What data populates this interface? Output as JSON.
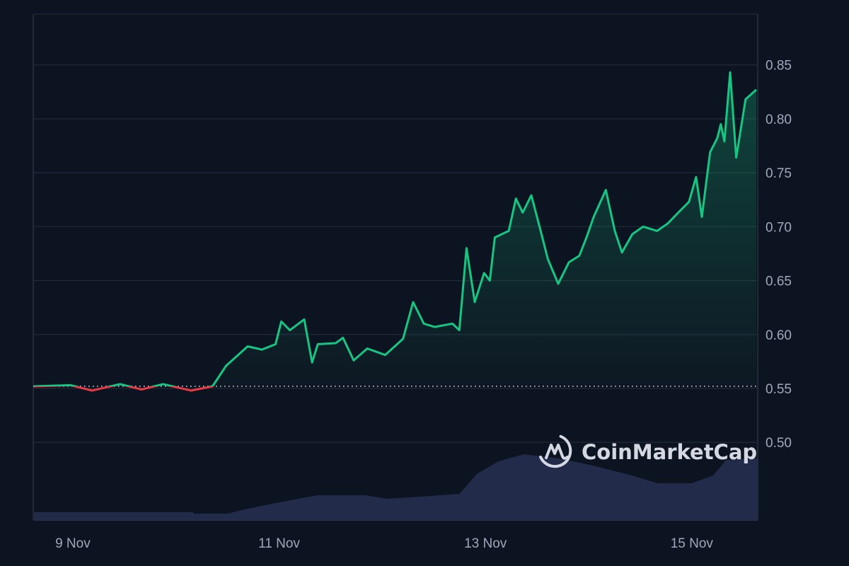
{
  "chart_data": {
    "type": "line",
    "title": "",
    "xlabel": "",
    "ylabel": "",
    "ylim": [
      0.428,
      0.897
    ],
    "y_ticks": [
      "0.50",
      "0.55",
      "0.60",
      "0.65",
      "0.70",
      "0.75",
      "0.80",
      "0.85"
    ],
    "x_ticks": [
      "9 Nov",
      "11 Nov",
      "13 Nov",
      "15 Nov"
    ],
    "x_range": [
      "8 Nov 14:48",
      "15 Nov 15:20"
    ],
    "grid": true,
    "baseline": 0.552,
    "colors": {
      "background": "#0d1421",
      "up": "#16c784",
      "down": "#ea3943",
      "volume": "#222b4a",
      "grid": "#222a3a"
    },
    "watermark": "CoinMarketCap",
    "series": [
      {
        "kind": "price",
        "points": [
          [
            "8 Nov 15:00",
            0.552
          ],
          [
            "8 Nov 23:30",
            0.553
          ],
          [
            "9 Nov 04:30",
            0.548
          ],
          [
            "9 Nov 11:00",
            0.554
          ],
          [
            "9 Nov 16:00",
            0.549
          ],
          [
            "9 Nov 21:00",
            0.554
          ],
          [
            "10 Nov 03:30",
            0.548
          ],
          [
            "10 Nov 08:30",
            0.552
          ],
          [
            "10 Nov 11:40",
            0.571
          ],
          [
            "10 Nov 16:40",
            0.589
          ],
          [
            "10 Nov 20:00",
            0.586
          ],
          [
            "10 Nov 23:10",
            0.591
          ],
          [
            "11 Nov 00:30",
            0.612
          ],
          [
            "11 Nov 02:30",
            0.604
          ],
          [
            "11 Nov 05:50",
            0.614
          ],
          [
            "11 Nov 07:40",
            0.574
          ],
          [
            "11 Nov 09:00",
            0.591
          ],
          [
            "11 Nov 13:10",
            0.592
          ],
          [
            "11 Nov 14:50",
            0.597
          ],
          [
            "11 Nov 17:20",
            0.576
          ],
          [
            "11 Nov 20:30",
            0.587
          ],
          [
            "12 Nov 00:40",
            0.581
          ],
          [
            "12 Nov 04:50",
            0.596
          ],
          [
            "12 Nov 07:10",
            0.63
          ],
          [
            "12 Nov 09:40",
            0.61
          ],
          [
            "12 Nov 12:10",
            0.607
          ],
          [
            "12 Nov 16:20",
            0.61
          ],
          [
            "12 Nov 17:55",
            0.604
          ],
          [
            "12 Nov 19:35",
            0.68
          ],
          [
            "12 Nov 21:30",
            0.63
          ],
          [
            "12 Nov 23:40",
            0.657
          ],
          [
            "13 Nov 01:00",
            0.65
          ],
          [
            "13 Nov 02:10",
            0.69
          ],
          [
            "13 Nov 05:25",
            0.696
          ],
          [
            "13 Nov 07:05",
            0.726
          ],
          [
            "13 Nov 08:40",
            0.713
          ],
          [
            "13 Nov 10:40",
            0.729
          ],
          [
            "13 Nov 12:50",
            0.696
          ],
          [
            "13 Nov 14:30",
            0.67
          ],
          [
            "13 Nov 16:55",
            0.647
          ],
          [
            "13 Nov 19:25",
            0.667
          ],
          [
            "13 Nov 21:50",
            0.673
          ],
          [
            "13 Nov 23:30",
            0.69
          ],
          [
            "14 Nov 01:10",
            0.709
          ],
          [
            "14 Nov 04:00",
            0.734
          ],
          [
            "14 Nov 06:05",
            0.696
          ],
          [
            "14 Nov 07:45",
            0.676
          ],
          [
            "14 Nov 10:10",
            0.693
          ],
          [
            "14 Nov 12:40",
            0.7
          ],
          [
            "14 Nov 15:55",
            0.696
          ],
          [
            "14 Nov 18:25",
            0.703
          ],
          [
            "14 Nov 20:50",
            0.713
          ],
          [
            "14 Nov 23:20",
            0.723
          ],
          [
            "15 Nov 01:00",
            0.746
          ],
          [
            "15 Nov 02:20",
            0.709
          ],
          [
            "15 Nov 04:15",
            0.769
          ],
          [
            "15 Nov 05:55",
            0.782
          ],
          [
            "15 Nov 06:45",
            0.795
          ],
          [
            "15 Nov 07:35",
            0.779
          ],
          [
            "15 Nov 08:55",
            0.843
          ],
          [
            "15 Nov 10:20",
            0.764
          ],
          [
            "15 Nov 12:30",
            0.818
          ],
          [
            "15 Nov 15:00",
            0.827
          ]
        ]
      },
      {
        "kind": "volume",
        "relative": true,
        "points": [
          [
            "8 Nov 15:00",
            11
          ],
          [
            "10 Nov 04:00",
            11
          ],
          [
            "10 Nov 04:10",
            9
          ],
          [
            "10 Nov 12:00",
            9
          ],
          [
            "10 Nov 16:00",
            15
          ],
          [
            "11 Nov 00:00",
            25
          ],
          [
            "11 Nov 09:00",
            35
          ],
          [
            "11 Nov 20:00",
            35
          ],
          [
            "12 Nov 01:00",
            30
          ],
          [
            "12 Nov 09:00",
            33
          ],
          [
            "12 Nov 18:00",
            37
          ],
          [
            "12 Nov 22:00",
            65
          ],
          [
            "13 Nov 03:00",
            83
          ],
          [
            "13 Nov 09:00",
            93
          ],
          [
            "13 Nov 17:00",
            87
          ],
          [
            "14 Nov 01:00",
            77
          ],
          [
            "14 Nov 10:00",
            63
          ],
          [
            "14 Nov 16:00",
            52
          ],
          [
            "15 Nov 00:00",
            52
          ],
          [
            "15 Nov 05:00",
            63
          ],
          [
            "15 Nov 08:00",
            85
          ],
          [
            "15 Nov 15:20",
            87
          ]
        ]
      }
    ]
  }
}
